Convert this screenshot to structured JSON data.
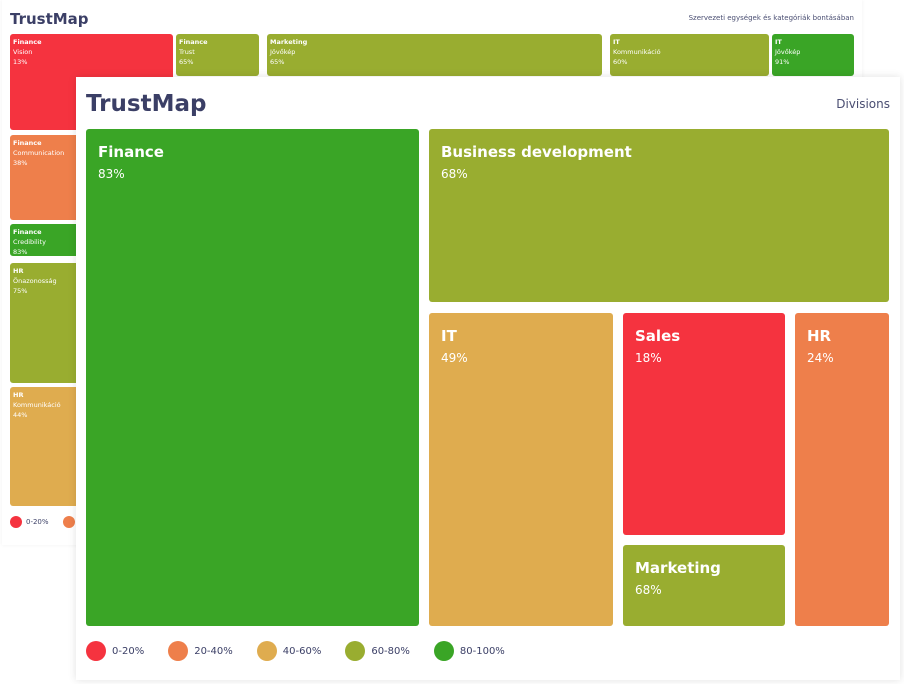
{
  "colors": {
    "0-20%": "#f5333f",
    "20-40%": "#ee7f4b",
    "40-60%": "#dfac4f",
    "60-80%": "#99ad30",
    "80-100%": "#3aa526"
  },
  "back": {
    "title": "TrustMap",
    "subtitle": "Szervezeti egységek és kategóriák bontásában",
    "tiles": [
      {
        "name": "Finance",
        "category": "Vision",
        "value": "13%",
        "band": "0-20%"
      },
      {
        "name": "Finance",
        "category": "Trust",
        "value": "65%",
        "band": "60-80%"
      },
      {
        "name": "Marketing",
        "category": "Jövőkép",
        "value": "65%",
        "band": "60-80%"
      },
      {
        "name": "IT",
        "category": "Kommunikáció",
        "value": "60%",
        "band": "60-80%"
      },
      {
        "name": "IT",
        "category": "Jövőkép",
        "value": "91%",
        "band": "80-100%"
      },
      {
        "name": "Finance",
        "category": "Communication",
        "value": "38%",
        "band": "20-40%"
      },
      {
        "name": "Finance",
        "category": "Credibility",
        "value": "83%",
        "band": "80-100%"
      },
      {
        "name": "HR",
        "category": "Önazonosság",
        "value": "75%",
        "band": "60-80%"
      },
      {
        "name": "HR",
        "category": "Kommunikáció",
        "value": "44%",
        "band": "40-60%"
      }
    ],
    "legend": [
      "0-20%",
      "20-40%"
    ]
  },
  "front": {
    "title": "TrustMap",
    "subtitle": "Divisions",
    "tiles": [
      {
        "name": "Finance",
        "value": "83%",
        "band": "80-100%"
      },
      {
        "name": "Business development",
        "value": "68%",
        "band": "60-80%"
      },
      {
        "name": "IT",
        "value": "49%",
        "band": "40-60%"
      },
      {
        "name": "Sales",
        "value": "18%",
        "band": "0-20%"
      },
      {
        "name": "Marketing",
        "value": "68%",
        "band": "60-80%"
      },
      {
        "name": "HR",
        "value": "24%",
        "band": "20-40%"
      }
    ],
    "legend": [
      "0-20%",
      "20-40%",
      "40-60%",
      "60-80%",
      "80-100%"
    ]
  }
}
